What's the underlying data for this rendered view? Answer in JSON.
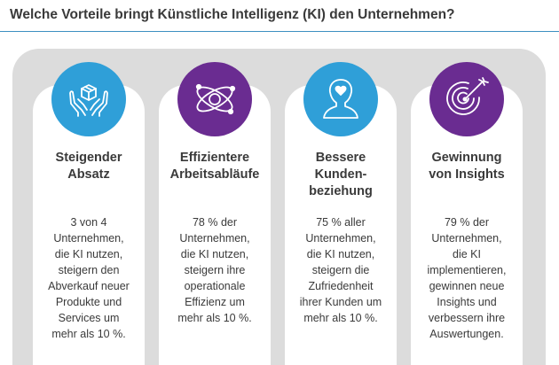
{
  "title": "Welche Vorteile bringt Künstliche Intelligenz (KI) den Unternehmen?",
  "colors": {
    "accent_blue": "#2f9fd8",
    "accent_purple": "#6a2c91",
    "panel_gray": "#dcdcdc",
    "title_rule": "#3d8fc1"
  },
  "cards": [
    {
      "icon": "box-in-hands-icon",
      "title_lines": [
        "Steigender",
        "Absatz"
      ],
      "text_lines": [
        "3 von 4",
        "Unternehmen,",
        "die KI nutzen,",
        "steigern den",
        "Abverkauf neuer",
        "Produkte und",
        "Services um",
        "mehr als 10 %."
      ]
    },
    {
      "icon": "atom-orbit-icon",
      "title_lines": [
        "Effizientere",
        "Arbeitsabläufe"
      ],
      "text_lines": [
        "78 % der",
        "Unternehmen,",
        "die KI nutzen,",
        "steigern ihre",
        "operationale",
        "Effizienz um",
        "mehr als 10 %."
      ]
    },
    {
      "icon": "person-heart-icon",
      "title_lines": [
        "Bessere",
        "Kunden-",
        "beziehung"
      ],
      "text_lines": [
        "75 % aller",
        "Unternehmen,",
        "die KI nutzen,",
        "steigern die",
        "Zufriedenheit",
        "ihrer Kunden um",
        "mehr als 10 %."
      ]
    },
    {
      "icon": "target-arrow-icon",
      "title_lines": [
        "Gewinnung",
        "von Insights"
      ],
      "text_lines": [
        "79 % der",
        "Unternehmen,",
        "die KI",
        "implementieren,",
        "gewinnen neue",
        "Insights und",
        "verbessern ihre",
        "Auswertungen."
      ]
    }
  ]
}
